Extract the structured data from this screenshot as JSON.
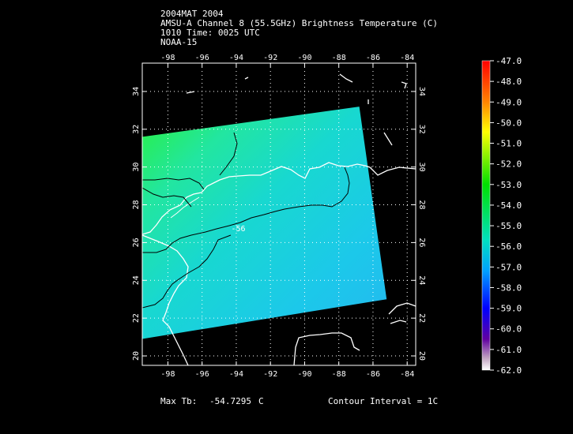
{
  "header": {
    "line1": "2004MAT 2004",
    "line2": "AMSU-A Channel 8 (55.5GHz) Brightness Temperature (C)",
    "line3": "1010 Time: 0025 UTC",
    "line4": "NOAA-15"
  },
  "map": {
    "lon_range": [
      -99.5,
      -83.5
    ],
    "lat_range": [
      19.5,
      35.5
    ],
    "lon_ticks": [
      -98,
      -96,
      -94,
      -92,
      -90,
      -88,
      -86,
      -84
    ],
    "lat_ticks": [
      20,
      22,
      24,
      26,
      28,
      30,
      32,
      34
    ],
    "lon_tick_labels": [
      "-98",
      "-96",
      "-94",
      "-92",
      "-90",
      "-88",
      "-86",
      "-84"
    ],
    "lat_tick_labels": [
      "20",
      "22",
      "24",
      "26",
      "28",
      "30",
      "32",
      "34"
    ],
    "contour_label": "-56",
    "contour_label_pos": {
      "lon": -94.3,
      "lat": 26.6
    },
    "swath_corners": [
      {
        "lon": -99.5,
        "lat": 31.6
      },
      {
        "lon": -86.8,
        "lat": 33.2
      },
      {
        "lon": -85.2,
        "lat": 23.0
      },
      {
        "lon": -99.5,
        "lat": 20.9
      }
    ],
    "coast_color": "#ffffff",
    "contour_color": "#000000",
    "grid_style": "dotted"
  },
  "colorbar": {
    "labels": [
      "-47.0",
      "-48.0",
      "-49.0",
      "-50.0",
      "-51.0",
      "-52.0",
      "-53.0",
      "-54.0",
      "-55.0",
      "-56.0",
      "-57.0",
      "-58.0",
      "-59.0",
      "-60.0",
      "-61.0",
      "-62.0"
    ],
    "max_value": -47.0,
    "min_value": -62.0
  },
  "footer": {
    "max_label": "Max Tb:",
    "max_value": "-54.7295",
    "max_unit": "C",
    "contour_interval": "Contour Interval = 1C"
  }
}
